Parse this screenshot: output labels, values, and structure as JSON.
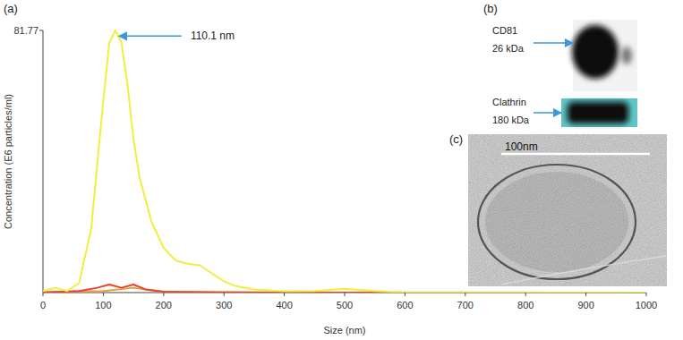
{
  "chart_data": {
    "type": "line",
    "title": "(a)",
    "x_label": "Size (nm)",
    "y_label": "Concentration (E6 particles/ml)",
    "xlim": [
      0,
      1000
    ],
    "xticks": [
      0,
      100,
      200,
      300,
      400,
      500,
      600,
      700,
      800,
      900,
      1000
    ],
    "ylim": [
      0,
      81.77
    ],
    "yticks": [
      81.77
    ],
    "annotations": [
      {
        "text": "110.1 nm",
        "x": 120,
        "y": 80
      }
    ],
    "series": [
      {
        "color": "#f2ee3c",
        "x": [
          0,
          20,
          40,
          60,
          80,
          100,
          110,
          120,
          130,
          140,
          150,
          160,
          180,
          200,
          220,
          240,
          260,
          280,
          300,
          320,
          350,
          400,
          450,
          500,
          550,
          600,
          700,
          800,
          900,
          1000
        ],
        "values": [
          0.5,
          1.5,
          0.5,
          3,
          20,
          60,
          78,
          81.77,
          78,
          65,
          48,
          36,
          22,
          14,
          10,
          9,
          8.5,
          6,
          3.5,
          2,
          1,
          0.4,
          0.5,
          1.2,
          0.5,
          0.1,
          0,
          0,
          0,
          0
        ]
      },
      {
        "color": "#e8432c",
        "x": [
          0,
          60,
          90,
          110,
          130,
          150,
          170,
          200,
          300,
          1000
        ],
        "values": [
          0,
          0.5,
          1.5,
          2.5,
          1.5,
          2.5,
          1,
          0.3,
          0,
          0
        ]
      },
      {
        "color": "#f29a3a",
        "x": [
          0,
          100,
          150,
          170,
          200,
          400,
          1000
        ],
        "values": [
          0.2,
          0.5,
          1.5,
          1,
          0.3,
          0.1,
          0
        ]
      }
    ]
  },
  "panels": {
    "b": {
      "label": "(b)",
      "bands": [
        {
          "name": "CD81",
          "size": "26 kDa"
        },
        {
          "name": "Clathrin",
          "size": "180 kDa"
        }
      ]
    },
    "c": {
      "label": "(c)",
      "scale_bar": "100nm"
    }
  }
}
